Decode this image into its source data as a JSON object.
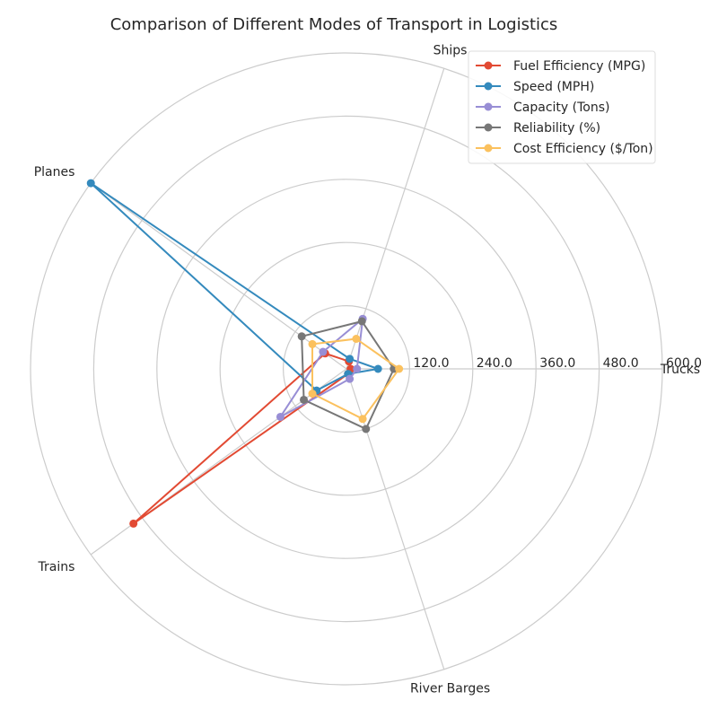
{
  "chart_data": {
    "type": "radar",
    "title": "Comparison of Different Modes of Transport in Logistics",
    "categories": [
      "Trucks",
      "Ships",
      "Planes",
      "Trains",
      "River Barges"
    ],
    "rlim": [
      0,
      600
    ],
    "rticks": [
      120,
      240,
      360,
      480,
      600
    ],
    "rtick_labels": [
      "120.0",
      "240.0",
      "360.0",
      "480.0",
      "600.0"
    ],
    "legend_position": "top-right",
    "grid": true,
    "series": [
      {
        "name": "Fuel Efficiency (MPG)",
        "color": "#E24A33",
        "values": [
          8,
          15,
          50,
          500,
          10
        ]
      },
      {
        "name": "Speed (MPH)",
        "color": "#348ABD",
        "values": [
          60,
          20,
          600,
          70,
          10
        ]
      },
      {
        "name": "Capacity (Tons)",
        "color": "#988ED5",
        "values": [
          20,
          100,
          55,
          155,
          20
        ]
      },
      {
        "name": "Reliability (%)",
        "color": "#777777",
        "values": [
          90,
          95,
          105,
          100,
          120
        ]
      },
      {
        "name": "Cost Efficiency ($/Ton)",
        "color": "#FBC15E",
        "values": [
          100,
          60,
          80,
          80,
          100
        ]
      }
    ]
  }
}
